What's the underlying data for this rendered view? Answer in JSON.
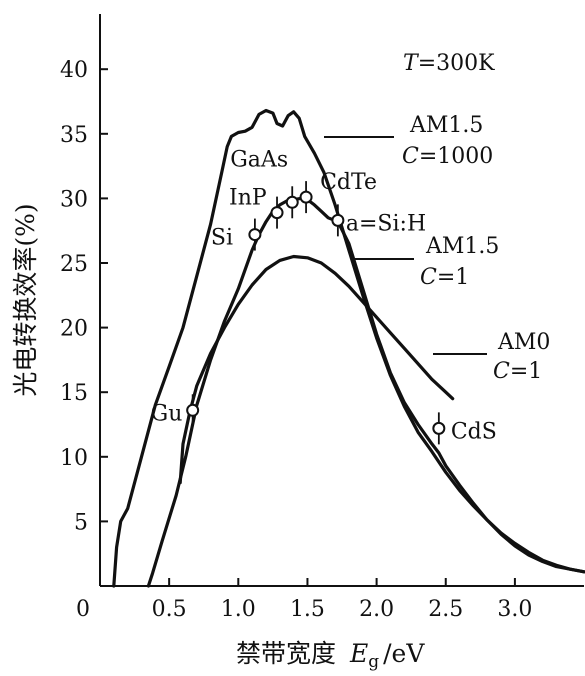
{
  "chart_data": {
    "type": "line",
    "xlabel_cn": "禁带宽度",
    "xlabel_var": "E",
    "xlabel_sub": "g",
    "xlabel_unit": "/eV",
    "ylabel": "光电转换效率(%)",
    "xlim": [
      0,
      3.5
    ],
    "ylim": [
      0,
      43
    ],
    "x_ticks": [
      {
        "v": 0,
        "label": "0"
      },
      {
        "v": 0.5,
        "label": "0.5"
      },
      {
        "v": 1.0,
        "label": "1.0"
      },
      {
        "v": 1.5,
        "label": "1.5"
      },
      {
        "v": 2.0,
        "label": "2.0"
      },
      {
        "v": 2.5,
        "label": "2.5"
      },
      {
        "v": 3.0,
        "label": "3.0"
      }
    ],
    "y_ticks": [
      {
        "v": 5,
        "label": "5"
      },
      {
        "v": 10,
        "label": "10"
      },
      {
        "v": 15,
        "label": "15"
      },
      {
        "v": 20,
        "label": "20"
      },
      {
        "v": 25,
        "label": "25"
      },
      {
        "v": 30,
        "label": "30"
      },
      {
        "v": 35,
        "label": "35"
      },
      {
        "v": 40,
        "label": "40"
      }
    ],
    "temperature_label": {
      "var": "T",
      "text": "=300K"
    },
    "series": [
      {
        "label_line1": "AM1.5",
        "label_line2_var": "C",
        "label_line2": "=1000",
        "points": [
          [
            0.1,
            0
          ],
          [
            0.12,
            3
          ],
          [
            0.15,
            5
          ],
          [
            0.2,
            6
          ],
          [
            0.3,
            10
          ],
          [
            0.4,
            14
          ],
          [
            0.5,
            17
          ],
          [
            0.6,
            20
          ],
          [
            0.7,
            24
          ],
          [
            0.8,
            28
          ],
          [
            0.88,
            32
          ],
          [
            0.92,
            34
          ],
          [
            0.95,
            34.8
          ],
          [
            1.0,
            35.1
          ],
          [
            1.05,
            35.2
          ],
          [
            1.1,
            35.5
          ],
          [
            1.15,
            36.5
          ],
          [
            1.2,
            36.8
          ],
          [
            1.25,
            36.6
          ],
          [
            1.28,
            35.8
          ],
          [
            1.32,
            35.6
          ],
          [
            1.36,
            36.4
          ],
          [
            1.4,
            36.7
          ],
          [
            1.44,
            36.2
          ],
          [
            1.48,
            34.8
          ],
          [
            1.55,
            33.5
          ],
          [
            1.62,
            32
          ],
          [
            1.7,
            29.5
          ],
          [
            1.8,
            26
          ],
          [
            1.9,
            22.5
          ],
          [
            2.0,
            19.2
          ],
          [
            2.1,
            16.3
          ],
          [
            2.2,
            13.9
          ],
          [
            2.3,
            11.9
          ],
          [
            2.4,
            10.4
          ],
          [
            2.5,
            8.8
          ],
          [
            2.6,
            7.4
          ],
          [
            2.7,
            6.2
          ],
          [
            2.8,
            5.1
          ],
          [
            2.9,
            4.1
          ],
          [
            3.0,
            3.3
          ],
          [
            3.1,
            2.6
          ],
          [
            3.2,
            2.0
          ],
          [
            3.3,
            1.6
          ],
          [
            3.4,
            1.3
          ],
          [
            3.5,
            1.1
          ]
        ]
      },
      {
        "label_line1": "AM1.5",
        "label_line2_var": "C",
        "label_line2": "=1",
        "points": [
          [
            0.35,
            0
          ],
          [
            0.38,
            1
          ],
          [
            0.45,
            3.5
          ],
          [
            0.55,
            7
          ],
          [
            0.62,
            10
          ],
          [
            0.7,
            14
          ],
          [
            0.8,
            17.5
          ],
          [
            0.9,
            20.5
          ],
          [
            1.0,
            23
          ],
          [
            1.1,
            26
          ],
          [
            1.15,
            27.2
          ],
          [
            1.2,
            28.2
          ],
          [
            1.25,
            29
          ],
          [
            1.3,
            29.5
          ],
          [
            1.35,
            29.8
          ],
          [
            1.4,
            29.9
          ],
          [
            1.45,
            30
          ],
          [
            1.5,
            29.9
          ],
          [
            1.55,
            29.5
          ],
          [
            1.6,
            29
          ],
          [
            1.65,
            28.5
          ],
          [
            1.72,
            28.2
          ],
          [
            1.8,
            26.5
          ],
          [
            1.9,
            23
          ],
          [
            2.0,
            19.5
          ],
          [
            2.1,
            16.5
          ],
          [
            2.2,
            14.2
          ],
          [
            2.3,
            12.5
          ],
          [
            2.4,
            11
          ],
          [
            2.45,
            10.3
          ],
          [
            2.5,
            9.3
          ],
          [
            2.6,
            7.8
          ],
          [
            2.7,
            6.4
          ],
          [
            2.8,
            5.1
          ],
          [
            2.9,
            4.0
          ],
          [
            3.0,
            3.1
          ],
          [
            3.1,
            2.4
          ],
          [
            3.2,
            1.9
          ],
          [
            3.3,
            1.5
          ],
          [
            3.4,
            1.3
          ],
          [
            3.5,
            1.1
          ]
        ]
      },
      {
        "label_line1": "AM0",
        "label_line2_var": "C",
        "label_line2": "=1",
        "points": [
          [
            0.58,
            8
          ],
          [
            0.6,
            11
          ],
          [
            0.65,
            13.5
          ],
          [
            0.7,
            15.5
          ],
          [
            0.8,
            18
          ],
          [
            0.9,
            20
          ],
          [
            1.0,
            21.8
          ],
          [
            1.1,
            23.3
          ],
          [
            1.2,
            24.5
          ],
          [
            1.3,
            25.2
          ],
          [
            1.4,
            25.5
          ],
          [
            1.5,
            25.4
          ],
          [
            1.6,
            25
          ],
          [
            1.7,
            24.2
          ],
          [
            1.8,
            23.2
          ],
          [
            1.9,
            22
          ],
          [
            2.0,
            20.8
          ],
          [
            2.1,
            19.6
          ],
          [
            2.2,
            18.4
          ],
          [
            2.3,
            17.2
          ],
          [
            2.4,
            16
          ],
          [
            2.5,
            15
          ],
          [
            2.55,
            14.5
          ]
        ]
      }
    ],
    "materials": [
      {
        "name": "Si",
        "x": 1.12,
        "y": 27.2
      },
      {
        "name": "InP",
        "x": 1.28,
        "y": 28.9
      },
      {
        "name": "GaAs",
        "x": 1.39,
        "y": 29.7
      },
      {
        "name": "CdTe",
        "x": 1.49,
        "y": 30.1
      },
      {
        "name": "a=Si:H",
        "x": 1.72,
        "y": 28.3
      },
      {
        "name": "CdS",
        "x": 2.45,
        "y": 12.2
      },
      {
        "name": "Gu",
        "x": 0.67,
        "y": 13.6
      }
    ]
  }
}
